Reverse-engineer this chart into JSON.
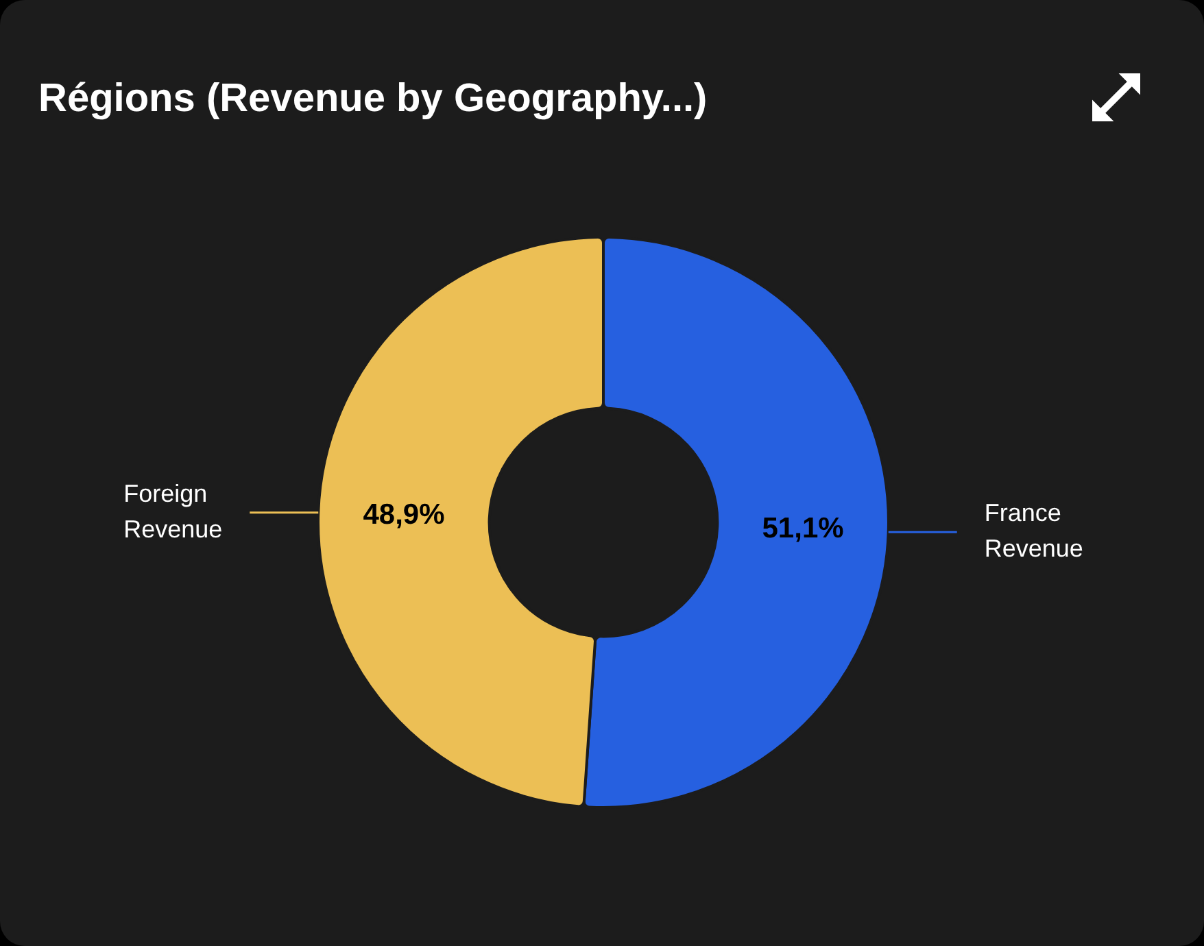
{
  "chart_data": {
    "type": "donut",
    "title": "Régions (Revenue by Geography...)",
    "categories": [
      "France Revenue",
      "Foreign Revenue"
    ],
    "values": [
      51.1,
      48.9
    ],
    "value_labels": [
      "51,1%",
      "48,9%"
    ],
    "colors": [
      "#2660e0",
      "#ecbf55"
    ],
    "legend": false
  }
}
